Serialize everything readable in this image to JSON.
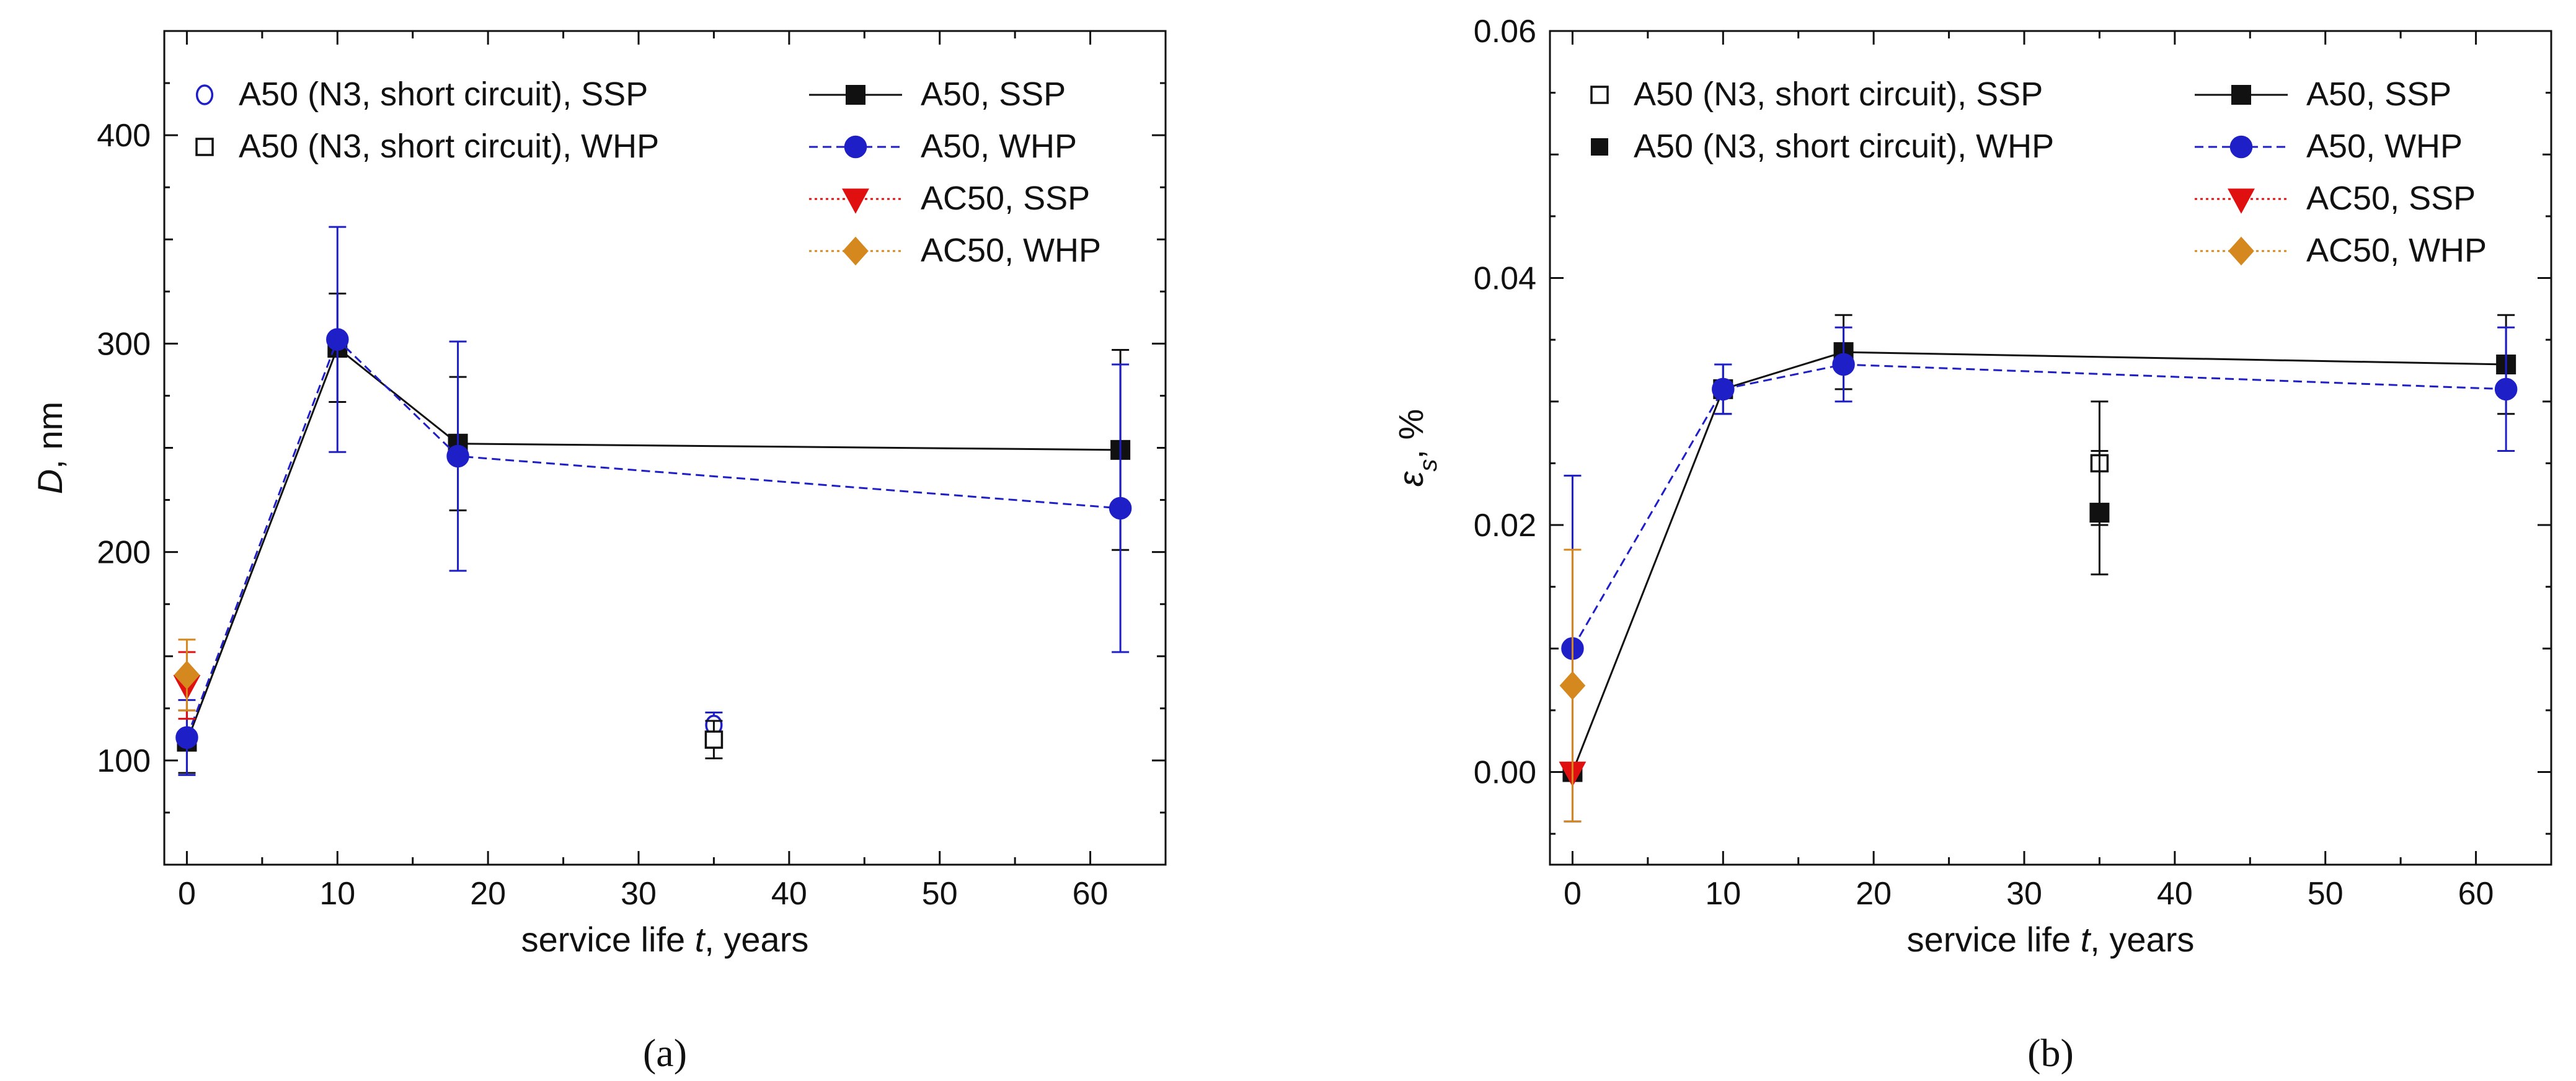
{
  "chart_data": [
    {
      "type": "line",
      "panel_label": "(a)",
      "xlabel": "service life t, years",
      "ylabel": "D, nm",
      "xlim": [
        -1.5,
        65
      ],
      "ylim": [
        50,
        450
      ],
      "xticks": [
        0,
        10,
        20,
        30,
        40,
        50,
        60
      ],
      "yticks": [
        100,
        200,
        300,
        400
      ],
      "grid": false,
      "series": [
        {
          "name": "A50, SSP",
          "style": "solid",
          "marker": "square",
          "color": "#111111",
          "fill": true,
          "x": [
            0,
            10,
            18,
            62
          ],
          "y": [
            109,
            298,
            252,
            249
          ],
          "err": [
            15,
            26,
            32,
            48
          ]
        },
        {
          "name": "A50, WHP",
          "style": "dashed",
          "marker": "circle",
          "color": "#1f1fc8",
          "fill": true,
          "x": [
            0,
            10,
            18,
            62
          ],
          "y": [
            111,
            302,
            246,
            221
          ],
          "err": [
            18,
            54,
            55,
            69
          ]
        },
        {
          "name": "AC50, SSP",
          "style": "dotted",
          "marker": "triangle-down",
          "color": "#e01010",
          "fill": true,
          "x": [
            0
          ],
          "y": [
            136
          ],
          "err": [
            16
          ]
        },
        {
          "name": "AC50, WHP",
          "style": "dotted",
          "marker": "diamond",
          "color": "#d4881e",
          "fill": true,
          "x": [
            0
          ],
          "y": [
            141
          ],
          "err": [
            17
          ]
        },
        {
          "name": "A50 (N3, short circuit), SSP",
          "style": "none",
          "marker": "circle",
          "color": "#1f1fc8",
          "fill": false,
          "x": [
            35
          ],
          "y": [
            117
          ],
          "err": [
            6
          ]
        },
        {
          "name": "A50 (N3, short circuit), WHP",
          "style": "none",
          "marker": "square",
          "color": "#111111",
          "fill": false,
          "x": [
            35
          ],
          "y": [
            110
          ],
          "err": [
            9
          ]
        }
      ],
      "legend_left": [
        "A50 (N3, short circuit), SSP",
        "A50 (N3, short circuit), WHP"
      ],
      "legend_right": [
        "A50, SSP",
        "A50, WHP",
        "AC50, SSP",
        "AC50, WHP"
      ]
    },
    {
      "type": "line",
      "panel_label": "(b)",
      "xlabel": "service life t, years",
      "ylabel": "ε",
      "ylabel_sub": "s",
      "ylabel_unit": ", %",
      "xlim": [
        -1.5,
        65
      ],
      "ylim": [
        -0.0075,
        0.06
      ],
      "xticks": [
        0,
        10,
        20,
        30,
        40,
        50,
        60
      ],
      "yticks": [
        0.0,
        0.02,
        0.04,
        0.06
      ],
      "ytick_labels": [
        "0.00",
        "0.02",
        "0.04",
        "0.06"
      ],
      "grid": false,
      "series": [
        {
          "name": "A50, SSP",
          "style": "solid",
          "marker": "square",
          "color": "#111111",
          "fill": true,
          "x": [
            0,
            10,
            18,
            62
          ],
          "y": [
            0.0,
            0.031,
            0.034,
            0.033
          ],
          "err": [
            0.0,
            0.002,
            0.003,
            0.004
          ]
        },
        {
          "name": "A50, WHP",
          "style": "dashed",
          "marker": "circle",
          "color": "#1f1fc8",
          "fill": true,
          "x": [
            0,
            10,
            18,
            62
          ],
          "y": [
            0.01,
            0.031,
            0.033,
            0.031
          ],
          "err": [
            0.014,
            0.002,
            0.003,
            0.005
          ]
        },
        {
          "name": "AC50, SSP",
          "style": "dotted",
          "marker": "triangle-down",
          "color": "#e01010",
          "fill": true,
          "x": [
            0
          ],
          "y": [
            0.0
          ],
          "err": [
            0.0
          ]
        },
        {
          "name": "AC50, WHP",
          "style": "dotted",
          "marker": "diamond",
          "color": "#d4881e",
          "fill": true,
          "x": [
            0
          ],
          "y": [
            0.007
          ],
          "err": [
            0.011
          ]
        },
        {
          "name": "A50 (N3, short circuit), SSP",
          "style": "none",
          "marker": "square",
          "color": "#111111",
          "fill": false,
          "x": [
            35
          ],
          "y": [
            0.025
          ],
          "err": [
            0.005
          ]
        },
        {
          "name": "A50 (N3, short circuit), WHP",
          "style": "none",
          "marker": "square",
          "color": "#111111",
          "fill": true,
          "x": [
            35
          ],
          "y": [
            0.021
          ],
          "err": [
            0.005
          ]
        }
      ],
      "legend_left": [
        "A50 (N3, short circuit), SSP",
        "A50 (N3, short circuit), WHP"
      ],
      "legend_right": [
        "A50, SSP",
        "A50, WHP",
        "AC50, SSP",
        "AC50, WHP"
      ]
    }
  ]
}
